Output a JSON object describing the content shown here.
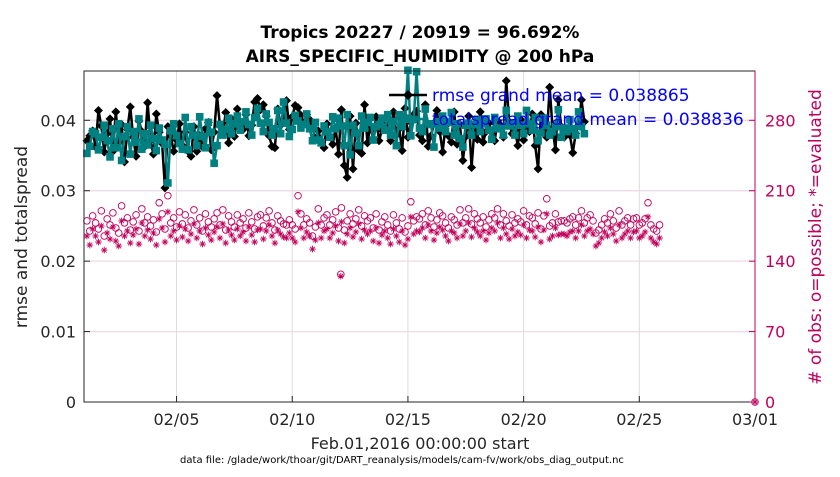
{
  "chart_data": {
    "type": "line",
    "title_line1": "Tropics 20227 / 20919 = 96.692%",
    "title_line2": "AIRS_SPECIFIC_HUMIDITY @ 200 hPa",
    "xlabel": "Feb.01,2016 00:00:00 start",
    "ylabel_left": "rmse and totalspread",
    "ylabel_right": "# of obs: o=possible; *=evaluated",
    "footer": "data file: /glade/work/thoar/git/DART_reanalysis/models/cam-fv/work/obs_diag_output.nc",
    "x_range_days": [
      1,
      30
    ],
    "x_ticks": [
      {
        "day": 5,
        "label": "02/05"
      },
      {
        "day": 10,
        "label": "02/10"
      },
      {
        "day": 15,
        "label": "02/15"
      },
      {
        "day": 20,
        "label": "02/20"
      },
      {
        "day": 25,
        "label": "02/25"
      },
      {
        "day": 30,
        "label": "03/01"
      }
    ],
    "ylim_left": [
      0,
      0.047
    ],
    "yticks_left": [
      {
        "value": 0,
        "label": "0"
      },
      {
        "value": 0.01,
        "label": "0.01"
      },
      {
        "value": 0.02,
        "label": "0.02"
      },
      {
        "value": 0.03,
        "label": "0.03"
      },
      {
        "value": 0.04,
        "label": "0.04"
      }
    ],
    "ylim_right": [
      0,
      329
    ],
    "yticks_right": [
      {
        "value": 0,
        "label": "0"
      },
      {
        "value": 70,
        "label": "70"
      },
      {
        "value": 140,
        "label": "140"
      },
      {
        "value": 210,
        "label": "210"
      },
      {
        "value": 280,
        "label": "280"
      }
    ],
    "legend": [
      {
        "name": "rmse grand mean = 0.038865",
        "color": "#000000",
        "marker": "diamond"
      },
      {
        "name": "totalspread grand mean = 0.038836",
        "color": "#008080",
        "marker": "square"
      }
    ],
    "legend_position": "top-right",
    "series_rmse": {
      "name": "rmse",
      "color": "#000000",
      "start_day": 1.125,
      "step_day": 0.125,
      "values": [
        0.0371,
        0.0378,
        0.0385,
        0.0362,
        0.0414,
        0.0392,
        0.0355,
        0.0381,
        0.0402,
        0.0356,
        0.0412,
        0.0368,
        0.0394,
        0.0341,
        0.0387,
        0.0419,
        0.0376,
        0.0349,
        0.0399,
        0.0384,
        0.0363,
        0.0425,
        0.0371,
        0.0352,
        0.0409,
        0.0383,
        0.0367,
        0.0304,
        0.0391,
        0.0378,
        0.0356,
        0.0372,
        0.0395,
        0.0364,
        0.0383,
        0.0356,
        0.0349,
        0.0391,
        0.0356,
        0.0378,
        0.0362,
        0.0388,
        0.0397,
        0.0358,
        0.0383,
        0.0435,
        0.0392,
        0.0381,
        0.0411,
        0.0368,
        0.0402,
        0.0377,
        0.0416,
        0.0393,
        0.0387,
        0.0408,
        0.0378,
        0.0393,
        0.0426,
        0.0431,
        0.0415,
        0.0422,
        0.0406,
        0.0378,
        0.0363,
        0.0361,
        0.0416,
        0.0393,
        0.0399,
        0.0428,
        0.0387,
        0.0405,
        0.0421,
        0.0418,
        0.0407,
        0.0396,
        0.0408,
        0.0401,
        0.0389,
        0.0374,
        0.0385,
        0.0371,
        0.0361,
        0.0395,
        0.0377,
        0.0366,
        0.0389,
        0.0352,
        0.0415,
        0.0336,
        0.0319,
        0.0406,
        0.0331,
        0.0396,
        0.0357,
        0.0353,
        0.0422,
        0.0368,
        0.0392,
        0.0373,
        0.0405,
        0.0371,
        0.0386,
        0.0393,
        0.0402,
        0.0371,
        0.0412,
        0.0379,
        0.0388,
        0.0357,
        0.0417,
        0.0376,
        0.0397,
        0.0408,
        0.0413,
        0.0379,
        0.0371,
        0.0422,
        0.0363,
        0.0378,
        0.0396,
        0.0414,
        0.0384,
        0.0355,
        0.0392,
        0.0378,
        0.0369,
        0.0412,
        0.0366,
        0.0394,
        0.0343,
        0.0377,
        0.0406,
        0.0333,
        0.0388,
        0.0373,
        0.0412,
        0.0369,
        0.0384,
        0.0396,
        0.0383,
        0.0371,
        0.0399,
        0.0393,
        0.0376,
        0.0456,
        0.0398,
        0.0381,
        0.0386,
        0.0364,
        0.0401,
        0.0372,
        0.0396,
        0.0384,
        0.0409,
        0.0364,
        0.0331,
        0.0408,
        0.0384,
        0.0376,
        0.0447,
        0.0389,
        0.0358,
        0.0429,
        0.0391,
        0.0376,
        0.0387,
        0.0379,
        0.0354,
        0.0381,
        0.0393,
        0.0429,
        0.0398
      ]
    },
    "series_spread": {
      "name": "totalspread",
      "color": "#008080",
      "start_day": 1.125,
      "step_day": 0.125,
      "values": [
        0.0353,
        0.0363,
        0.0384,
        0.0381,
        0.0358,
        0.0376,
        0.0393,
        0.0371,
        0.0348,
        0.0388,
        0.0361,
        0.0395,
        0.0343,
        0.0377,
        0.0391,
        0.0352,
        0.0384,
        0.0369,
        0.0402,
        0.0359,
        0.0381,
        0.0365,
        0.0393,
        0.0374,
        0.0357,
        0.0389,
        0.0372,
        0.0366,
        0.0311,
        0.0385,
        0.0395,
        0.0378,
        0.0367,
        0.0359,
        0.0404,
        0.0358,
        0.0391,
        0.0379,
        0.0364,
        0.0405,
        0.0377,
        0.0361,
        0.0397,
        0.0383,
        0.0339,
        0.0364,
        0.0394,
        0.0379,
        0.0387,
        0.0403,
        0.0381,
        0.0395,
        0.0406,
        0.0386,
        0.0398,
        0.0412,
        0.0394,
        0.0379,
        0.0404,
        0.0417,
        0.0396,
        0.0384,
        0.0409,
        0.0397,
        0.0379,
        0.0388,
        0.0414,
        0.0381,
        0.0426,
        0.0396,
        0.0377,
        0.0387,
        0.0407,
        0.0399,
        0.0389,
        0.0394,
        0.0409,
        0.0388,
        0.0371,
        0.0397,
        0.0372,
        0.0368,
        0.0392,
        0.0384,
        0.0376,
        0.0405,
        0.0388,
        0.0403,
        0.0392,
        0.0364,
        0.0408,
        0.0351,
        0.0393,
        0.0382,
        0.0364,
        0.0406,
        0.0389,
        0.0397,
        0.0404,
        0.0372,
        0.0391,
        0.0394,
        0.0403,
        0.0386,
        0.0408,
        0.0379,
        0.0398,
        0.0364,
        0.0408,
        0.0391,
        0.0403,
        0.0471,
        0.0378,
        0.0401,
        0.0469,
        0.0389,
        0.0384,
        0.0416,
        0.0395,
        0.0394,
        0.0362,
        0.0398,
        0.0389,
        0.0406,
        0.0384,
        0.0397,
        0.0411,
        0.0379,
        0.0395,
        0.0374,
        0.0362,
        0.0393,
        0.0396,
        0.0379,
        0.0394,
        0.0401,
        0.0384,
        0.0395,
        0.0402,
        0.0386,
        0.0373,
        0.0404,
        0.0388,
        0.0389,
        0.0379,
        0.0414,
        0.0392,
        0.0396,
        0.0379,
        0.0406,
        0.0393,
        0.0381,
        0.0414,
        0.0395,
        0.0386,
        0.0404,
        0.0371,
        0.0382,
        0.0403,
        0.0393,
        0.0379,
        0.0384,
        0.0391,
        0.0415,
        0.0376,
        0.0389,
        0.0384,
        0.0401,
        0.0388,
        0.0379,
        0.0412,
        0.0391,
        0.0381
      ]
    },
    "series_possible": {
      "name": "# of obs possible",
      "color": "#c0005a",
      "marker": "circle",
      "start_day": 1.125,
      "step_day": 0.125,
      "values": [
        180,
        170,
        185,
        178,
        172,
        190,
        165,
        182,
        176,
        188,
        173,
        168,
        195,
        178,
        183,
        171,
        179,
        186,
        170,
        192,
        178,
        184,
        175,
        181,
        169,
        198,
        187,
        172,
        205,
        178,
        183,
        174,
        189,
        177,
        186,
        173,
        180,
        191,
        176,
        183,
        170,
        187,
        179,
        174,
        182,
        188,
        176,
        191,
        171,
        185,
        179,
        174,
        186,
        178,
        182,
        173,
        188,
        179,
        172,
        184,
        186,
        175,
        183,
        190,
        178,
        171,
        185,
        180,
        177,
        176,
        181,
        176,
        172,
        205,
        187,
        176,
        182,
        178,
        165,
        174,
        192,
        176,
        183,
        186,
        176,
        181,
        189,
        173,
        193,
        171,
        180,
        187,
        177,
        182,
        191,
        175,
        185,
        180,
        183,
        173,
        187,
        171,
        179,
        184,
        176,
        170,
        186,
        178,
        172,
        183,
        169,
        175,
        199,
        180,
        184,
        182,
        187,
        176,
        190,
        183,
        174,
        181,
        188,
        185,
        178,
        173,
        184,
        181,
        176,
        191,
        178,
        183,
        192,
        177,
        187,
        182,
        178,
        184,
        174,
        181,
        187,
        183,
        192,
        176,
        187,
        180,
        175,
        186,
        178,
        182,
        179,
        190,
        176,
        185,
        183,
        177,
        188,
        172,
        185,
        202,
        175,
        178,
        187,
        179,
        180,
        180,
        178,
        182,
        184,
        176,
        183,
        190,
        178,
        183,
        186,
        180,
        168,
        171,
        176,
        182,
        178,
        187,
        180,
        173,
        190,
        176,
        180,
        183,
        176,
        182,
        183,
        176,
        178,
        182,
        198,
        176,
        172,
        170,
        176
      ]
    },
    "series_evaluated": {
      "name": "# of obs evaluated",
      "color": "#c0005a",
      "marker": "asterisk",
      "start_day": 1.125,
      "step_day": 0.125,
      "values": [
        165,
        156,
        172,
        165,
        159,
        175,
        151,
        168,
        162,
        174,
        160,
        155,
        180,
        165,
        170,
        158,
        166,
        172,
        157,
        178,
        165,
        171,
        162,
        168,
        156,
        182,
        173,
        159,
        189,
        165,
        170,
        161,
        175,
        164,
        172,
        160,
        167,
        177,
        163,
        170,
        157,
        173,
        166,
        161,
        169,
        174,
        163,
        177,
        158,
        171,
        166,
        161,
        172,
        165,
        169,
        160,
        174,
        166,
        159,
        171,
        172,
        162,
        170,
        176,
        165,
        158,
        171,
        167,
        164,
        163,
        168,
        163,
        159,
        189,
        173,
        163,
        169,
        165,
        152,
        161,
        178,
        163,
        170,
        172,
        163,
        168,
        175,
        160,
        179,
        158,
        167,
        173,
        164,
        169,
        177,
        162,
        171,
        167,
        170,
        160,
        173,
        158,
        166,
        170,
        163,
        157,
        172,
        165,
        159,
        170,
        156,
        162,
        184,
        167,
        170,
        169,
        173,
        163,
        176,
        170,
        161,
        168,
        174,
        171,
        165,
        160,
        170,
        168,
        163,
        177,
        165,
        170,
        178,
        164,
        173,
        169,
        165,
        170,
        161,
        168,
        173,
        170,
        178,
        163,
        173,
        167,
        162,
        172,
        165,
        169,
        166,
        176,
        163,
        171,
        170,
        164,
        174,
        159,
        171,
        187,
        162,
        165,
        173,
        166,
        167,
        167,
        165,
        169,
        170,
        163,
        170,
        176,
        165,
        170,
        172,
        167,
        155,
        158,
        163,
        169,
        165,
        173,
        167,
        160,
        176,
        163,
        167,
        170,
        163,
        169,
        170,
        163,
        165,
        169,
        184,
        163,
        159,
        157,
        163
      ]
    },
    "anomalies": [
      {
        "name": "low obs outlier",
        "day": 12.1,
        "possible": 127,
        "evaluated": 125
      },
      {
        "name": "end-of-period obs",
        "day": 30,
        "possible": 0,
        "evaluated": 0
      }
    ]
  }
}
